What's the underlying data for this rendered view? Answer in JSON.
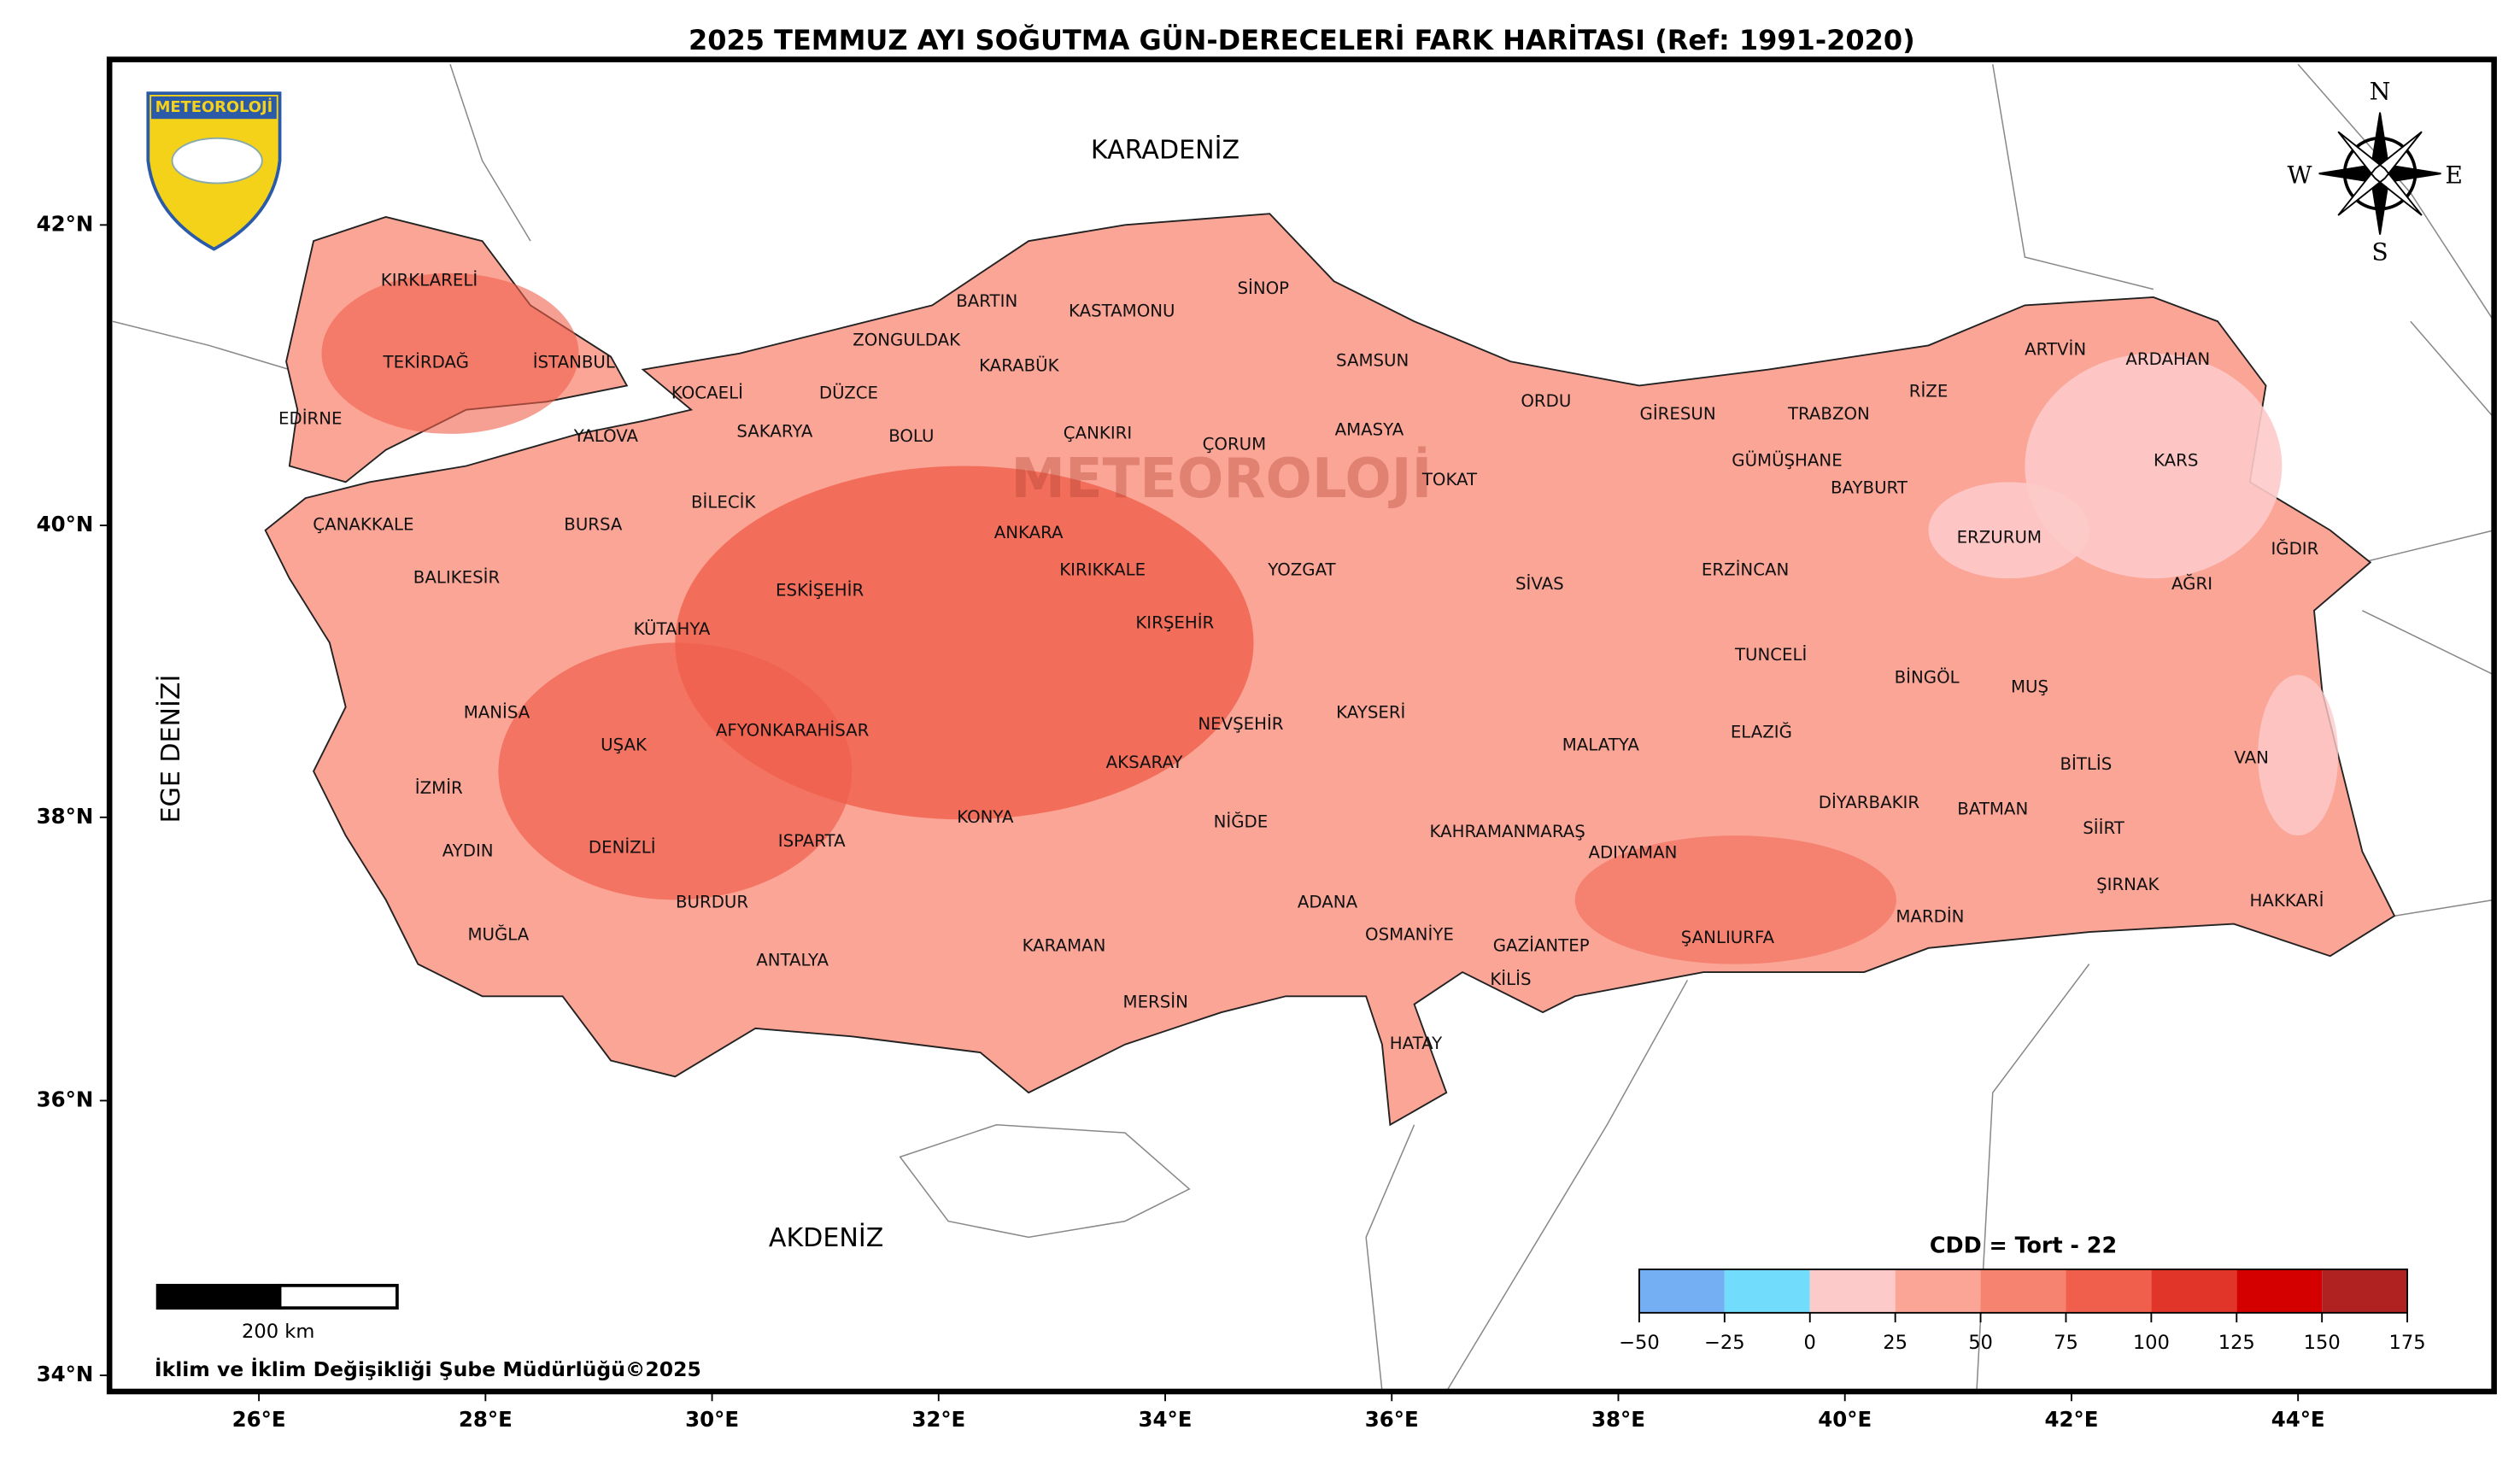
{
  "title": "2025 TEMMUZ AYI SOĞUTMA GÜN-DERECELERİ FARK HARİTASI (Ref: 1991-2020)",
  "logo": "METEOROLOJİ",
  "seas": [
    "KARADENİZ",
    "AKDENİZ",
    "EGE DENİZİ"
  ],
  "compass": {
    "n": "N",
    "s": "S",
    "e": "E",
    "w": "W"
  },
  "lat_ticks": [
    {
      "value": 42,
      "label": "42°N"
    },
    {
      "value": 40,
      "label": "40°N"
    },
    {
      "value": 38,
      "label": "38°N"
    },
    {
      "value": 36,
      "label": "36°N"
    },
    {
      "value": 34,
      "label": "34°N"
    }
  ],
  "lon_ticks": [
    {
      "value": 26,
      "label": "26°E"
    },
    {
      "value": 28,
      "label": "28°E"
    },
    {
      "value": 30,
      "label": "30°E"
    },
    {
      "value": 32,
      "label": "32°E"
    },
    {
      "value": 34,
      "label": "34°E"
    },
    {
      "value": 36,
      "label": "36°E"
    },
    {
      "value": 38,
      "label": "38°E"
    },
    {
      "value": 40,
      "label": "40°E"
    },
    {
      "value": 42,
      "label": "42°E"
    },
    {
      "value": 44,
      "label": "44°E"
    }
  ],
  "provinces": [
    "KIRKLARELİ",
    "TEKİRDAĞ",
    "EDİRNE",
    "İSTANBUL",
    "YALOVA",
    "KOCAELİ",
    "SAKARYA",
    "DÜZCE",
    "ZONGULDAK",
    "BARTIN",
    "KARABÜK",
    "KASTAMONU",
    "SİNOP",
    "SAMSUN",
    "BOLU",
    "ÇANKIRI",
    "ÇORUM",
    "AMASYA",
    "TOKAT",
    "ORDU",
    "GİRESUN",
    "TRABZON",
    "RİZE",
    "ARTVİN",
    "ARDAHAN",
    "KARS",
    "GÜMÜŞHANE",
    "BAYBURT",
    "ERZURUM",
    "IĞDIR",
    "AĞRI",
    "ERZİNCAN",
    "SİVAS",
    "YOZGAT",
    "KIRIKKALE",
    "ANKARA",
    "ÇANAKKALE",
    "BURSA",
    "BİLECİK",
    "BALIKESİR",
    "KÜTAHYA",
    "ESKİŞEHİR",
    "KIRŞEHİR",
    "TUNCELİ",
    "BİNGÖL",
    "MUŞ",
    "VAN",
    "BİTLİS",
    "ELAZIĞ",
    "MALATYA",
    "KAYSERİ",
    "NEVŞEHİR",
    "MANİSA",
    "UŞAK",
    "AFYONKARAHİSAR",
    "AKSARAY",
    "İZMİR",
    "AYDIN",
    "DENİZLİ",
    "ISPARTA",
    "KONYA",
    "NİĞDE",
    "KAHRAMANMARAŞ",
    "ADIYAMAN",
    "DİYARBAKIR",
    "BATMAN",
    "SİİRT",
    "ŞIRNAK",
    "HAKKARİ",
    "MARDİN",
    "ŞANLIURFA",
    "GAZİANTEP",
    "KİLİS",
    "OSMANİYE",
    "ADANA",
    "HATAY",
    "MERSİN",
    "KARAMAN",
    "ANTALYA",
    "BURDUR",
    "MUĞLA"
  ],
  "colorbar": {
    "title": "CDD = Tort - 22",
    "bounds": [
      {
        "value": -50,
        "label": "−50"
      },
      {
        "value": -25,
        "label": "−25"
      },
      0,
      25,
      50,
      75,
      100,
      125,
      150,
      175
    ],
    "colors": [
      "#74aef3",
      "#72dcfc",
      "#fdcaca",
      "#fba597",
      "#f6836f",
      "#f05f4b",
      "#e2352a",
      "#d40000",
      "#b02222"
    ]
  },
  "scale_bar": "200 km",
  "footer": "İklim ve İklim Değişikliği Şube Müdürlüğü©2025"
}
